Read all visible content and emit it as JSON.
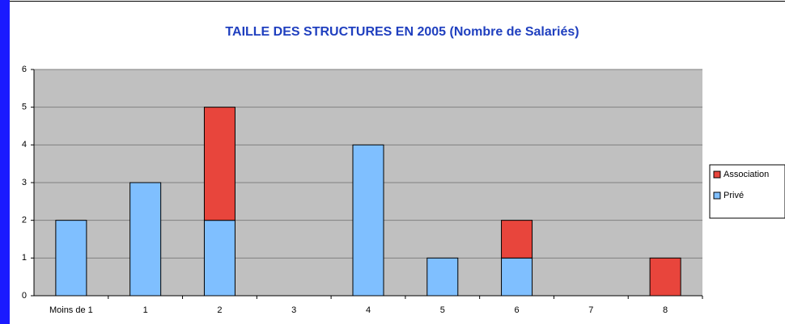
{
  "chart_data": {
    "type": "bar",
    "stacked": true,
    "title": "TAILLE DES STRUCTURES EN 2005 (Nombre de Salariés)",
    "categories": [
      "Moins de 1",
      "1",
      "2",
      "3",
      "4",
      "5",
      "6",
      "7",
      "8"
    ],
    "series": [
      {
        "name": "Privé",
        "color": "#7fbfff",
        "values": [
          2,
          3,
          2,
          0,
          4,
          1,
          1,
          0,
          0
        ]
      },
      {
        "name": "Association",
        "color": "#e8453c",
        "values": [
          0,
          0,
          3,
          0,
          0,
          0,
          1,
          0,
          1
        ]
      }
    ],
    "ylim": [
      0,
      6
    ],
    "yticks": [
      0,
      1,
      2,
      3,
      4,
      5,
      6
    ],
    "grid": true,
    "legend": "right"
  }
}
